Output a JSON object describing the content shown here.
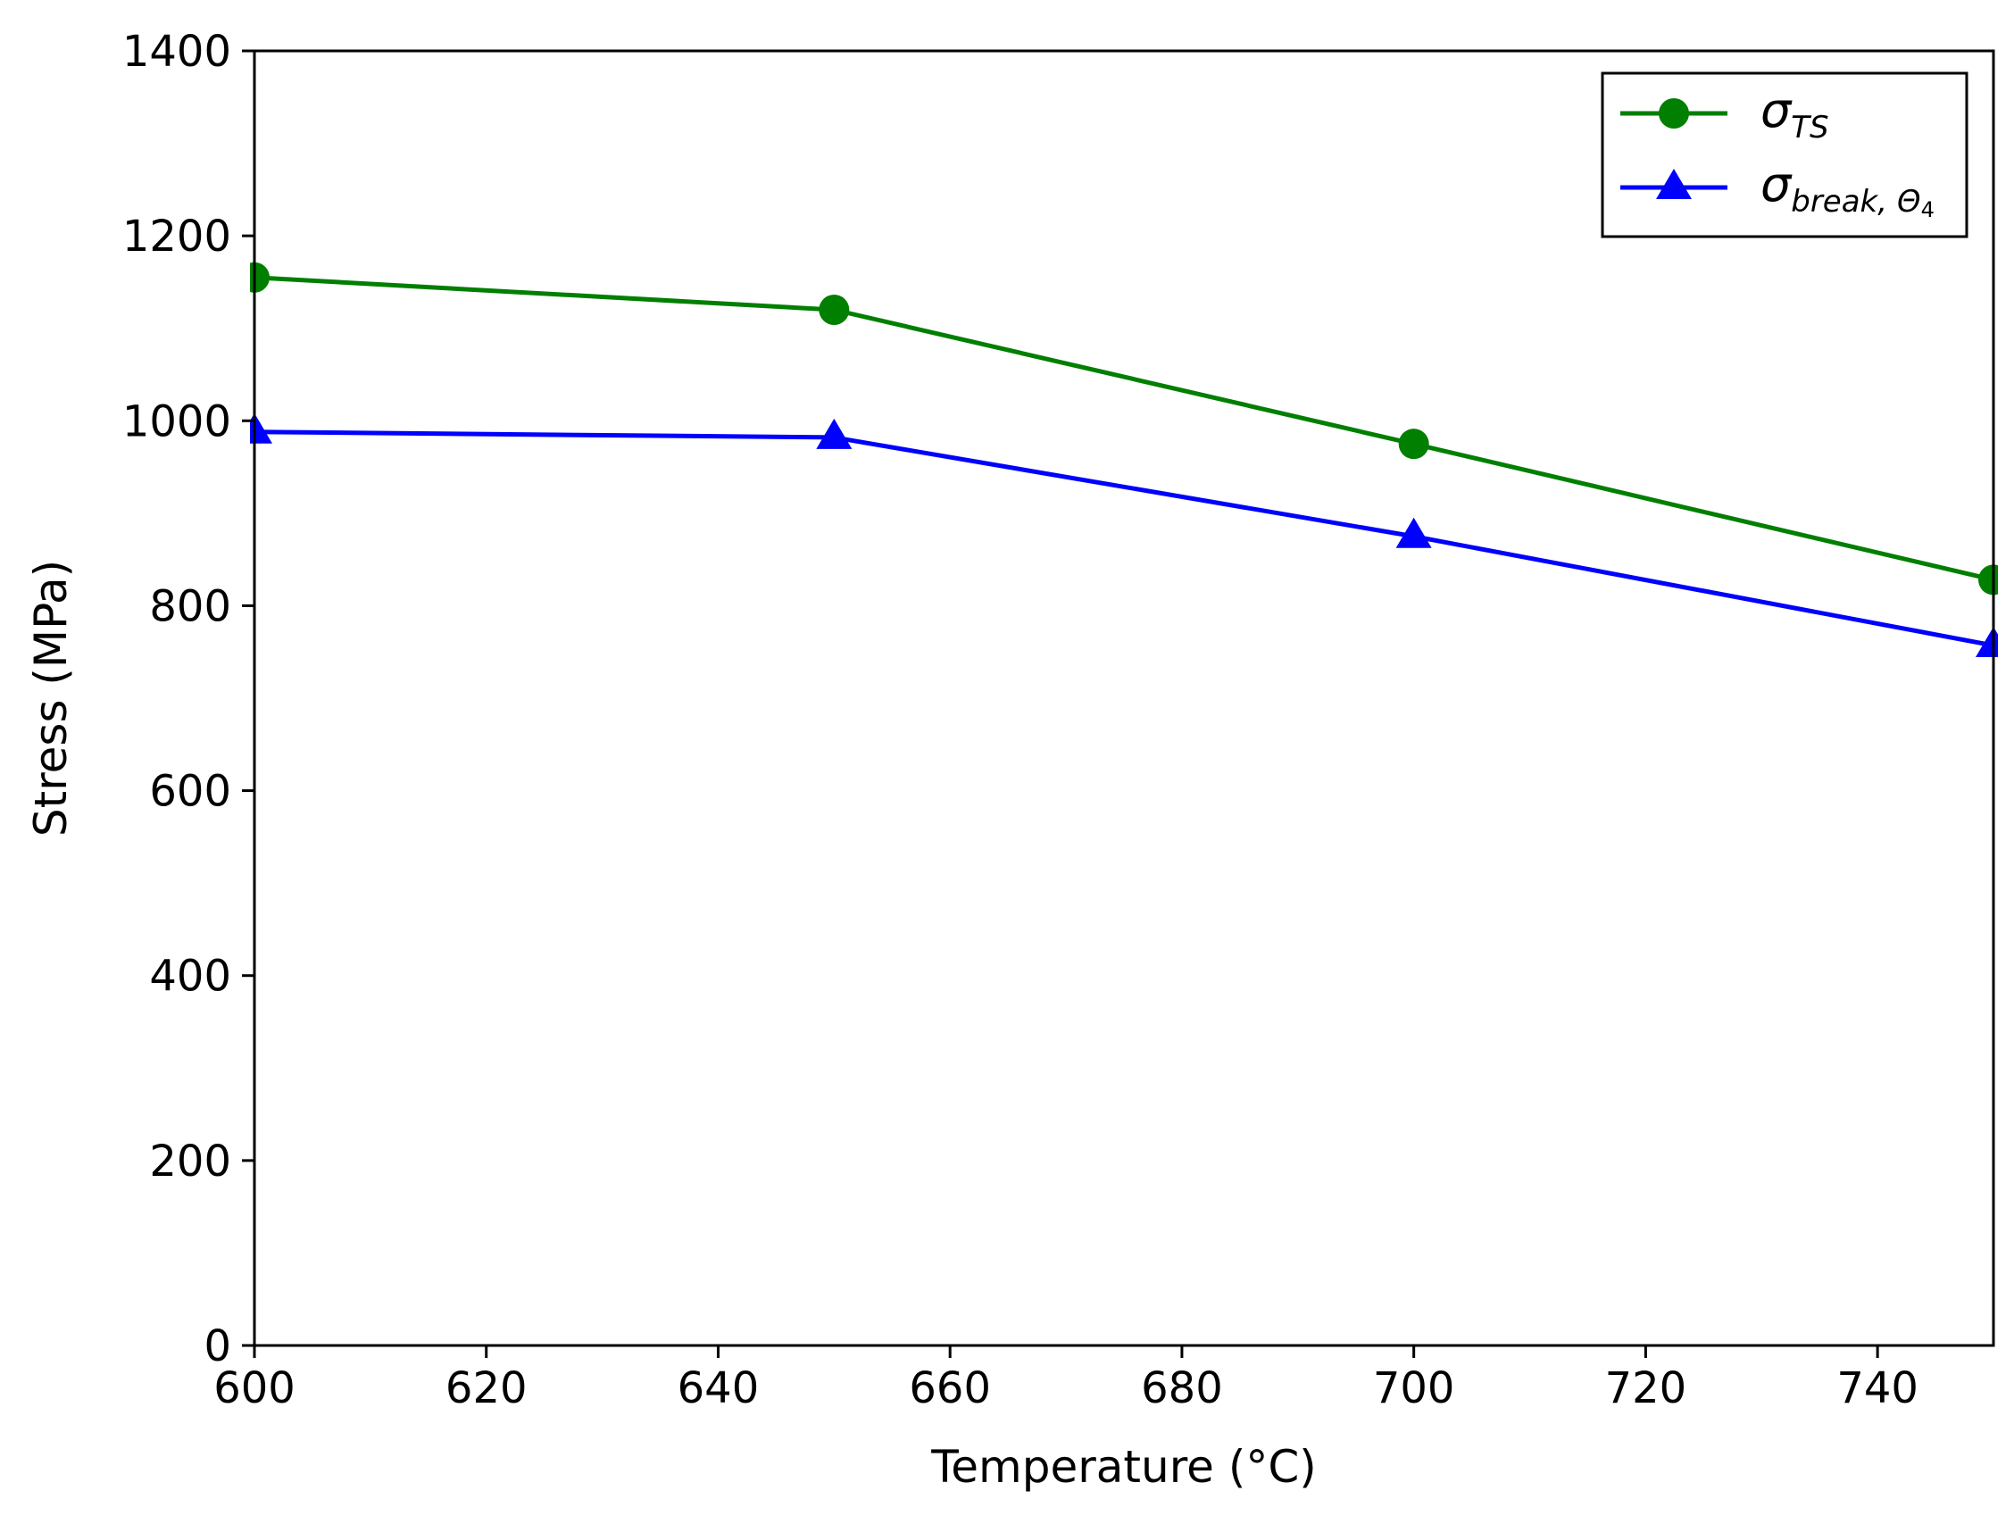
{
  "chart_data": {
    "type": "line",
    "xlabel": "Temperature (°C)",
    "ylabel": "Stress (MPa)",
    "xlim": [
      600,
      750
    ],
    "ylim": [
      0,
      1400
    ],
    "xticks": [
      600,
      620,
      640,
      660,
      680,
      700,
      720,
      740
    ],
    "yticks": [
      0,
      200,
      400,
      600,
      800,
      1000,
      1200,
      1400
    ],
    "grid": false,
    "legend_position": "top-right",
    "x": [
      600,
      650,
      700,
      750
    ],
    "series": [
      {
        "name": "σ_TS",
        "legend_main": "σ",
        "legend_sub": "TS",
        "values": [
          1155,
          1120,
          975,
          828
        ],
        "color": "#007f00",
        "marker": "circle"
      },
      {
        "name": "σ_break,Θ4",
        "legend_main": "σ",
        "legend_sub": "break, Θ",
        "legend_subsub": "4",
        "values": [
          988,
          982,
          875,
          757
        ],
        "color": "#0000ff",
        "marker": "triangle"
      }
    ]
  }
}
